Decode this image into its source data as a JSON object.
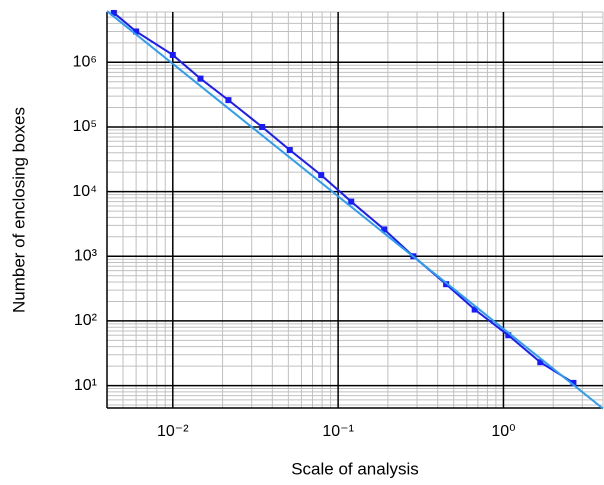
{
  "chart_data": {
    "type": "line",
    "x_label": "Scale of analysis",
    "y_label": "Number of enclosing boxes",
    "xscale": "log",
    "yscale": "log",
    "grid": true,
    "minor_grid": true,
    "xlim": [
      0.004,
      4
    ],
    "ylim": [
      4.5,
      6000000
    ],
    "xticks": [
      {
        "value": 0.01,
        "label": "10⁻²"
      },
      {
        "value": 0.1,
        "label": "10⁻¹"
      },
      {
        "value": 1,
        "label": "10⁰"
      }
    ],
    "yticks": [
      {
        "value": 10,
        "label": "10¹"
      },
      {
        "value": 100,
        "label": "10²"
      },
      {
        "value": 1000,
        "label": "10³"
      },
      {
        "value": 10000,
        "label": "10⁴"
      },
      {
        "value": 100000,
        "label": "10⁵"
      },
      {
        "value": 1000000,
        "label": "10⁶"
      }
    ],
    "series": [
      {
        "color": "#1a1aff",
        "markers": true,
        "x": [
          0.0044,
          0.006,
          0.01,
          0.0147,
          0.0217,
          0.0347,
          0.051,
          0.079,
          0.12,
          0.19,
          0.285,
          0.45,
          0.67,
          1.07,
          1.67,
          2.65
        ],
        "values": [
          5800000,
          3000000,
          1300000,
          560000,
          260000,
          100000,
          44000,
          18000,
          7000,
          2600,
          1000,
          370,
          150,
          60,
          23,
          11
        ]
      },
      {
        "color": "#2a9df4",
        "markers": false,
        "x": [
          0.004,
          4
        ],
        "values": [
          6200000,
          4.4
        ]
      }
    ]
  }
}
